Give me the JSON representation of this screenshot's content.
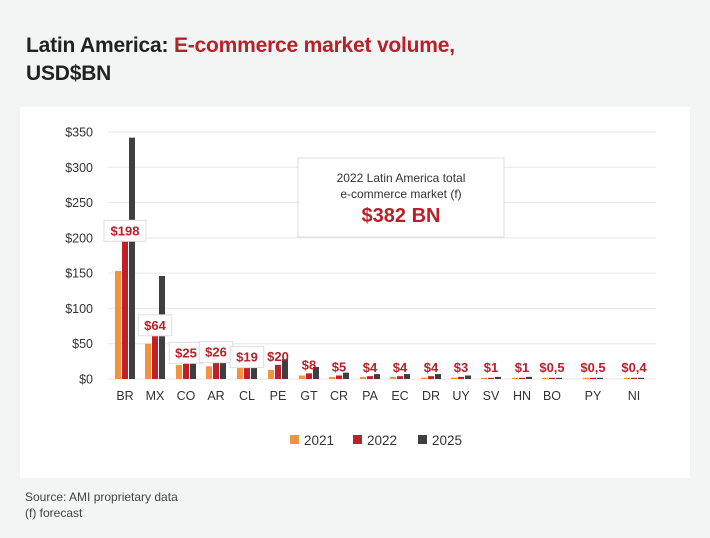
{
  "title": {
    "prefix": "Latin America: ",
    "accent": "E-commerce market volume,",
    "line2": "USD$BN"
  },
  "callout": {
    "line1": "2022 Latin America total",
    "line2": "e-commerce market (f)",
    "value": "$382 BN"
  },
  "footer": {
    "source": "Source: AMI proprietary data",
    "note": "(f) forecast"
  },
  "chart_data": {
    "type": "bar",
    "title": "Latin America: E-commerce market volume, USD$BN",
    "xlabel": "",
    "ylabel": "",
    "ylim": [
      0,
      350
    ],
    "yticks": [
      0,
      50,
      100,
      150,
      200,
      250,
      300,
      350
    ],
    "ytick_labels": [
      "$0",
      "$50",
      "$100",
      "$150",
      "$200",
      "$250",
      "$300",
      "$350"
    ],
    "grid": true,
    "legend_position": "bottom-center",
    "categories": [
      "BR",
      "MX",
      "CO",
      "AR",
      "CL",
      "PE",
      "GT",
      "CR",
      "PA",
      "EC",
      "DR",
      "UY",
      "SV",
      "HN",
      "BO",
      "PY",
      "NI"
    ],
    "series": [
      {
        "name": "2021",
        "color": "#f39341",
        "values": [
          153,
          50,
          20,
          18,
          16,
          13,
          5,
          3,
          3,
          3,
          2,
          2,
          1,
          1,
          0.4,
          0.4,
          0.3
        ]
      },
      {
        "name": "2022",
        "color": "#c0202b",
        "values": [
          198,
          64,
          25,
          26,
          19,
          20,
          8,
          5,
          4,
          4,
          4,
          3,
          1,
          1,
          0.5,
          0.5,
          0.4
        ]
      },
      {
        "name": "2025",
        "color": "#3f3f3f",
        "values": [
          342,
          146,
          50,
          52,
          32,
          28,
          17,
          9,
          7,
          7,
          7,
          5,
          3,
          3,
          1,
          1,
          1
        ]
      }
    ],
    "data_labels": [
      "$198",
      "$64",
      "$25",
      "$26",
      "$19",
      "$20",
      "$8",
      "$5",
      "$4",
      "$4",
      "$4",
      "$3",
      "$1",
      "$1",
      "$0,5",
      "$0,5",
      "$0,4"
    ],
    "boxed_labels": [
      true,
      true,
      true,
      true,
      true,
      false,
      false,
      false,
      false,
      false,
      false,
      false,
      false,
      false,
      false,
      false,
      false
    ]
  }
}
